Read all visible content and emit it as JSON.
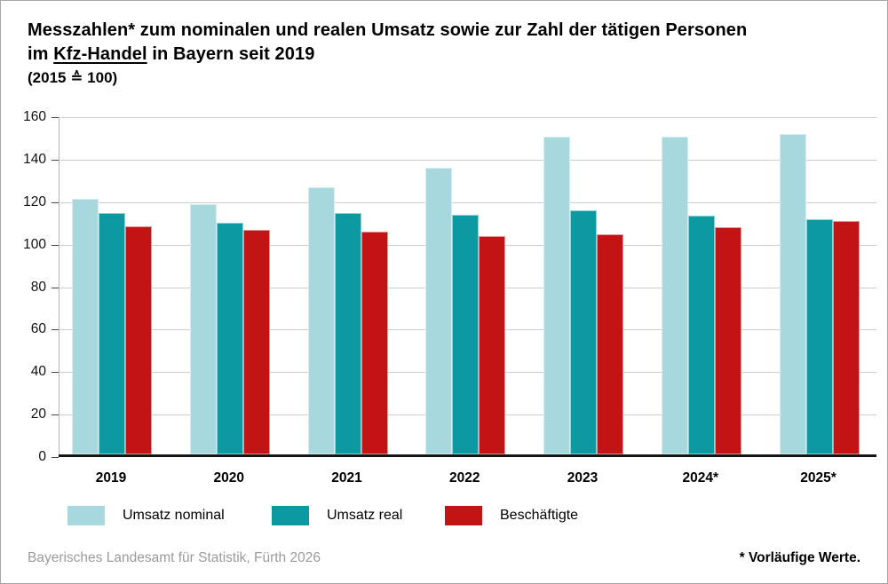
{
  "title": {
    "line1": "Messzahlen* zum nominalen und realen Umsatz sowie zur Zahl der tätigen Personen",
    "line2_pre": "im ",
    "line2_underline": "Kfz-Handel",
    "line2_post": " in Bayern seit 2019",
    "line3": "(2015 ≙ 100)"
  },
  "chart_data": {
    "type": "bar",
    "title": "Messzahlen* zum nominalen und realen Umsatz sowie zur Zahl der tätigen Personen im Kfz-Handel in Bayern seit 2019",
    "subtitle": "(2015 ≙ 100)",
    "categories": [
      "2019",
      "2020",
      "2021",
      "2022",
      "2023",
      "2024*",
      "2025*"
    ],
    "series": [
      {
        "name": "Umsatz nominal",
        "color": "#a6d8dd",
        "values": [
          121.5,
          119,
          127,
          136,
          151,
          151,
          152
        ]
      },
      {
        "name": "Umsatz real",
        "color": "#0d99a2",
        "values": [
          115,
          110.5,
          115,
          114,
          116,
          113.5,
          112
        ]
      },
      {
        "name": "Beschäftigte",
        "color": "#c21414",
        "values": [
          108.5,
          107,
          106,
          104,
          105,
          108,
          111
        ]
      }
    ],
    "ylim": [
      0,
      160
    ],
    "ytick_step": 20,
    "grid": true,
    "legend_position": "bottom",
    "gridline_color": "#cfcfcf",
    "baseline_color": "#141414"
  },
  "footer": {
    "source": "Bayerisches Landesamt für Statistik, Fürth 2026",
    "note": "* Vorläufige Werte."
  }
}
